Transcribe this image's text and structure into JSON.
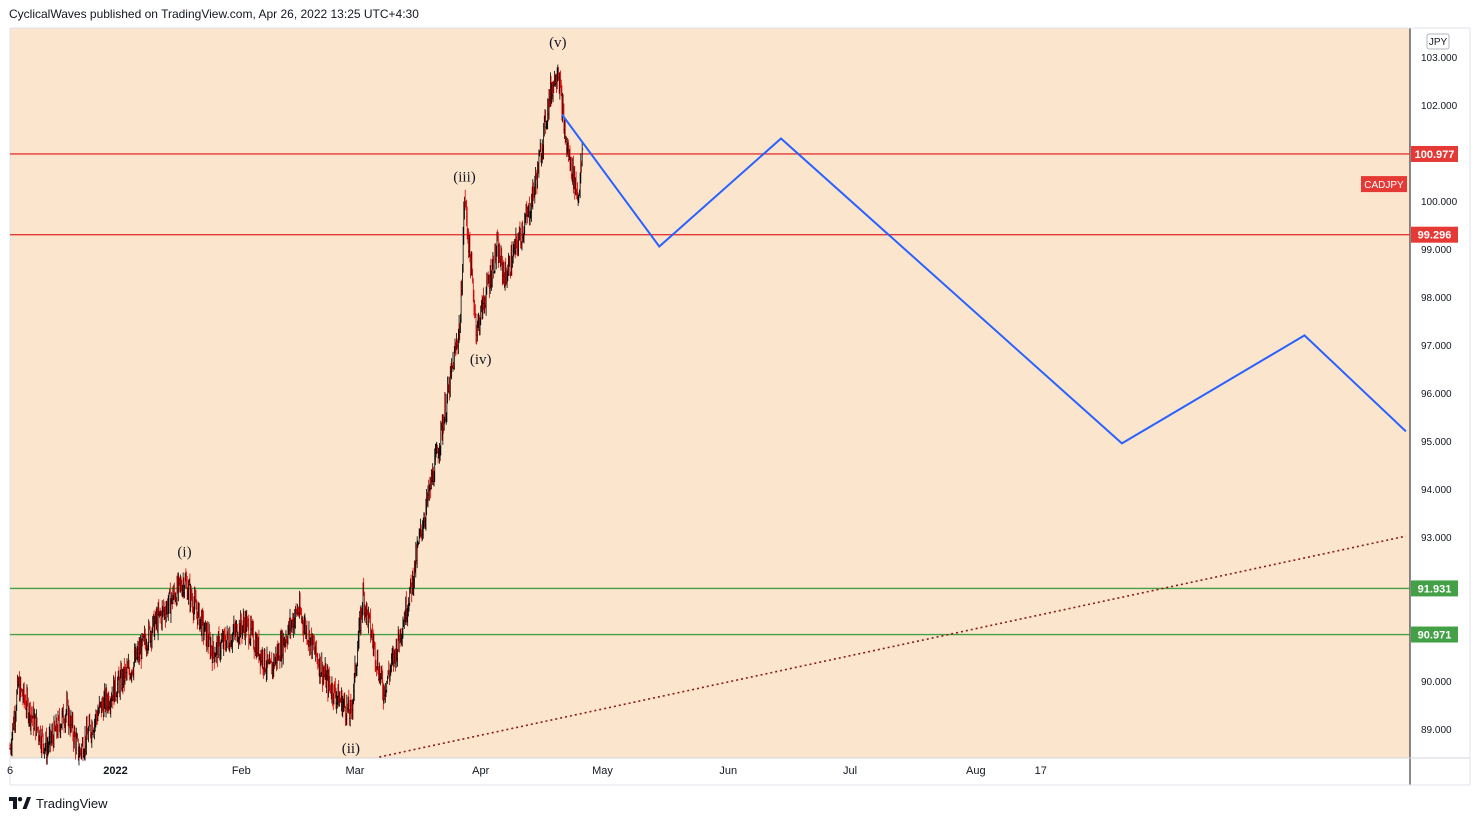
{
  "header": {
    "published": "CyclicalWaves published on TradingView.com, Apr 26, 2022 13:25 UTC+4:30"
  },
  "footer": {
    "brand": "TradingView",
    "logo_icon": "tradingview-logo-icon"
  },
  "colors": {
    "background": "#fbe5cd",
    "resistance": "#e53935",
    "support": "#43a047",
    "projection": "#2962ff",
    "trendline": "#8b1a1a",
    "candle_up": "#000000",
    "candle_down": "#d50000"
  },
  "chart_data": {
    "type": "candlestick",
    "symbol": "CADJPY",
    "currency": "JPY",
    "x_labels": [
      "6",
      "2022",
      "Feb",
      "Mar",
      "Apr",
      "May",
      "Jun",
      "Jul",
      "Aug",
      "17"
    ],
    "y_ticks": [
      "103.000",
      "102.000",
      "100.000",
      "99.000",
      "98.000",
      "97.000",
      "96.000",
      "95.000",
      "94.000",
      "93.000",
      "90.000",
      "89.000"
    ],
    "ylim": [
      88.4,
      103.6
    ],
    "horizontal_levels": [
      {
        "label": "100.977",
        "value": 100.977,
        "kind": "resistance"
      },
      {
        "label": "99.296",
        "value": 99.296,
        "kind": "resistance"
      },
      {
        "label": "91.931",
        "value": 91.931,
        "kind": "support"
      },
      {
        "label": "90.971",
        "value": 90.971,
        "kind": "support"
      }
    ],
    "price_path": [
      {
        "date": "2021-12-06",
        "price": 88.6
      },
      {
        "date": "2021-12-08",
        "price": 89.9
      },
      {
        "date": "2021-12-15",
        "price": 88.6
      },
      {
        "date": "2021-12-20",
        "price": 89.4
      },
      {
        "date": "2021-12-23",
        "price": 88.5
      },
      {
        "date": "2021-12-28",
        "price": 89.4
      },
      {
        "date": "2022-01-05",
        "price": 90.3
      },
      {
        "date": "2022-01-10",
        "price": 91.1
      },
      {
        "date": "2022-01-18",
        "price": 92.1
      },
      {
        "date": "2022-01-25",
        "price": 90.6
      },
      {
        "date": "2022-02-02",
        "price": 91.2
      },
      {
        "date": "2022-02-08",
        "price": 90.2
      },
      {
        "date": "2022-02-15",
        "price": 91.5
      },
      {
        "date": "2022-02-22",
        "price": 90.0
      },
      {
        "date": "2022-02-28",
        "price": 89.3
      },
      {
        "date": "2022-03-03",
        "price": 91.8
      },
      {
        "date": "2022-03-08",
        "price": 89.8
      },
      {
        "date": "2022-03-11",
        "price": 90.6
      },
      {
        "date": "2022-03-15",
        "price": 92.0
      },
      {
        "date": "2022-03-17",
        "price": 93.0
      },
      {
        "date": "2022-03-21",
        "price": 94.6
      },
      {
        "date": "2022-03-24",
        "price": 96.0
      },
      {
        "date": "2022-03-27",
        "price": 97.5
      },
      {
        "date": "2022-03-28",
        "price": 100.1
      },
      {
        "date": "2022-03-31",
        "price": 97.3
      },
      {
        "date": "2022-04-05",
        "price": 99.0
      },
      {
        "date": "2022-04-07",
        "price": 98.4
      },
      {
        "date": "2022-04-13",
        "price": 99.8
      },
      {
        "date": "2022-04-15",
        "price": 100.6
      },
      {
        "date": "2022-04-18",
        "price": 102.2
      },
      {
        "date": "2022-04-20",
        "price": 102.8
      },
      {
        "date": "2022-04-22",
        "price": 101.2
      },
      {
        "date": "2022-04-25",
        "price": 100.1
      },
      {
        "date": "2022-04-26",
        "price": 100.9
      }
    ],
    "projection_path": [
      {
        "date": "2022-04-21",
        "price": 101.8
      },
      {
        "date": "2022-05-15",
        "price": 99.05
      },
      {
        "date": "2022-06-14",
        "price": 101.3
      },
      {
        "date": "2022-09-06",
        "price": 94.95
      },
      {
        "date": "2022-10-21",
        "price": 97.2
      },
      {
        "date": "2022-11-15",
        "price": 95.2
      }
    ],
    "trendline_path": [
      {
        "date": "2022-03-07",
        "price": 88.42
      },
      {
        "date": "2022-11-15",
        "price": 93.02
      }
    ],
    "wave_labels": [
      {
        "text": "(i)",
        "date": "2022-01-18",
        "price": 92.6
      },
      {
        "text": "(ii)",
        "date": "2022-02-28",
        "price": 88.5
      },
      {
        "text": "(iii)",
        "date": "2022-03-28",
        "price": 100.4
      },
      {
        "text": "(iv)",
        "date": "2022-04-01",
        "price": 96.6
      },
      {
        "text": "(v)",
        "date": "2022-04-20",
        "price": 103.2
      }
    ],
    "symbol_tag": {
      "text": "CADJPY",
      "price": 100.35
    }
  }
}
